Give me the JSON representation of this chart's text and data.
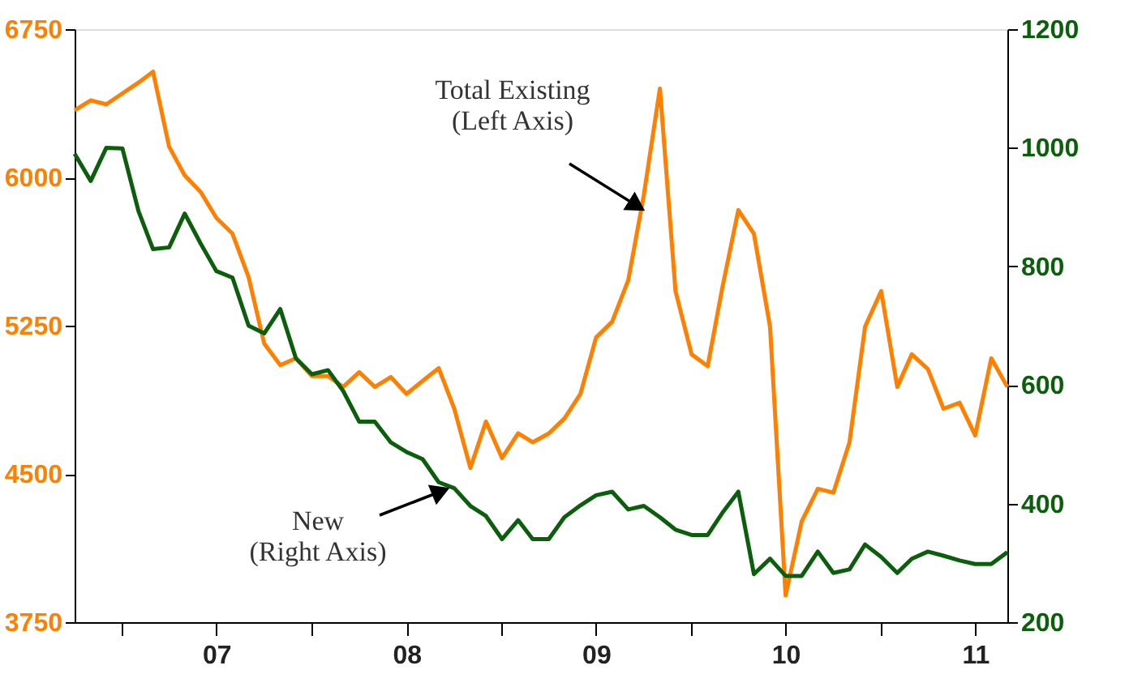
{
  "chart_data": {
    "type": "line",
    "x": [
      "2006-10",
      "2006-11",
      "2006-12",
      "2007-01",
      "2007-02",
      "2007-03",
      "2007-04",
      "2007-05",
      "2007-06",
      "2007-07",
      "2007-08",
      "2007-09",
      "2007-10",
      "2007-11",
      "2007-12",
      "2008-01",
      "2008-02",
      "2008-03",
      "2008-04",
      "2008-05",
      "2008-06",
      "2008-07",
      "2008-08",
      "2008-09",
      "2008-10",
      "2008-11",
      "2008-12",
      "2009-01",
      "2009-02",
      "2009-03",
      "2009-04",
      "2009-05",
      "2009-06",
      "2009-07",
      "2009-08",
      "2009-09",
      "2009-10",
      "2009-11",
      "2009-12",
      "2010-01",
      "2010-02",
      "2010-03",
      "2010-04",
      "2010-05",
      "2010-06",
      "2010-07",
      "2010-08",
      "2010-09",
      "2010-10",
      "2010-11",
      "2010-12",
      "2011-01",
      "2011-02",
      "2011-03",
      "2011-04",
      "2011-05",
      "2011-06",
      "2011-07",
      "2011-08",
      "2011-09"
    ],
    "series": [
      {
        "name": "Total Existing\n(Left Axis)",
        "color": "#ff8000",
        "values": [
          6340,
          6390,
          6370,
          6425,
          6480,
          6535,
          6155,
          6010,
          5925,
          5795,
          5715,
          5495,
          5160,
          5050,
          5085,
          4995,
          4995,
          4940,
          5015,
          4940,
          4990,
          4905,
          4970,
          5035,
          4830,
          4530,
          4765,
          4580,
          4705,
          4660,
          4705,
          4780,
          4905,
          5190,
          5270,
          5480,
          5910,
          6450,
          5425,
          5105,
          5045,
          5440,
          5835,
          5715,
          5245,
          3885,
          4260,
          4425,
          4405,
          4660,
          5245,
          5425,
          4940,
          5105,
          5030,
          4830,
          4860,
          4695,
          5085,
          4940
        ]
      },
      {
        "name": "New\n(Right Axis)",
        "color": "#0b5e0b",
        "axis": "y2",
        "values": [
          990,
          944,
          1000,
          999,
          893,
          829,
          832,
          889,
          838,
          792,
          781,
          700,
          687,
          728,
          645,
          618,
          625,
          590,
          538,
          538,
          503,
          487,
          475,
          436,
          426,
          396,
          379,
          340,
          372,
          340,
          340,
          377,
          397,
          414,
          420,
          390,
          396,
          377,
          356,
          347,
          347,
          384,
          420,
          281,
          307,
          278,
          278,
          319,
          283,
          289,
          331,
          310,
          283,
          307,
          319,
          312,
          304,
          298,
          298,
          318
        ]
      }
    ],
    "xlim": [
      "2006-10",
      "2011-09"
    ],
    "xticks": [
      {
        "value": "2007-01",
        "label": null
      },
      {
        "value": "2007-07",
        "label": "07"
      },
      {
        "value": "2008-01",
        "label": null
      },
      {
        "value": "2008-07",
        "label": "08"
      },
      {
        "value": "2009-01",
        "label": null
      },
      {
        "value": "2009-07",
        "label": "09"
      },
      {
        "value": "2010-01",
        "label": null
      },
      {
        "value": "2010-07",
        "label": "10"
      },
      {
        "value": "2011-01",
        "label": null
      },
      {
        "value": "2011-07",
        "label": "11"
      }
    ],
    "ylim": [
      3750,
      6750
    ],
    "yticks": [
      3750,
      4500,
      5250,
      6000,
      6750
    ],
    "y2lim": [
      200,
      1200
    ],
    "y2ticks": [
      200,
      400,
      600,
      800,
      1000,
      1200
    ],
    "grid": false,
    "marker": "none",
    "line_style": "solid"
  }
}
